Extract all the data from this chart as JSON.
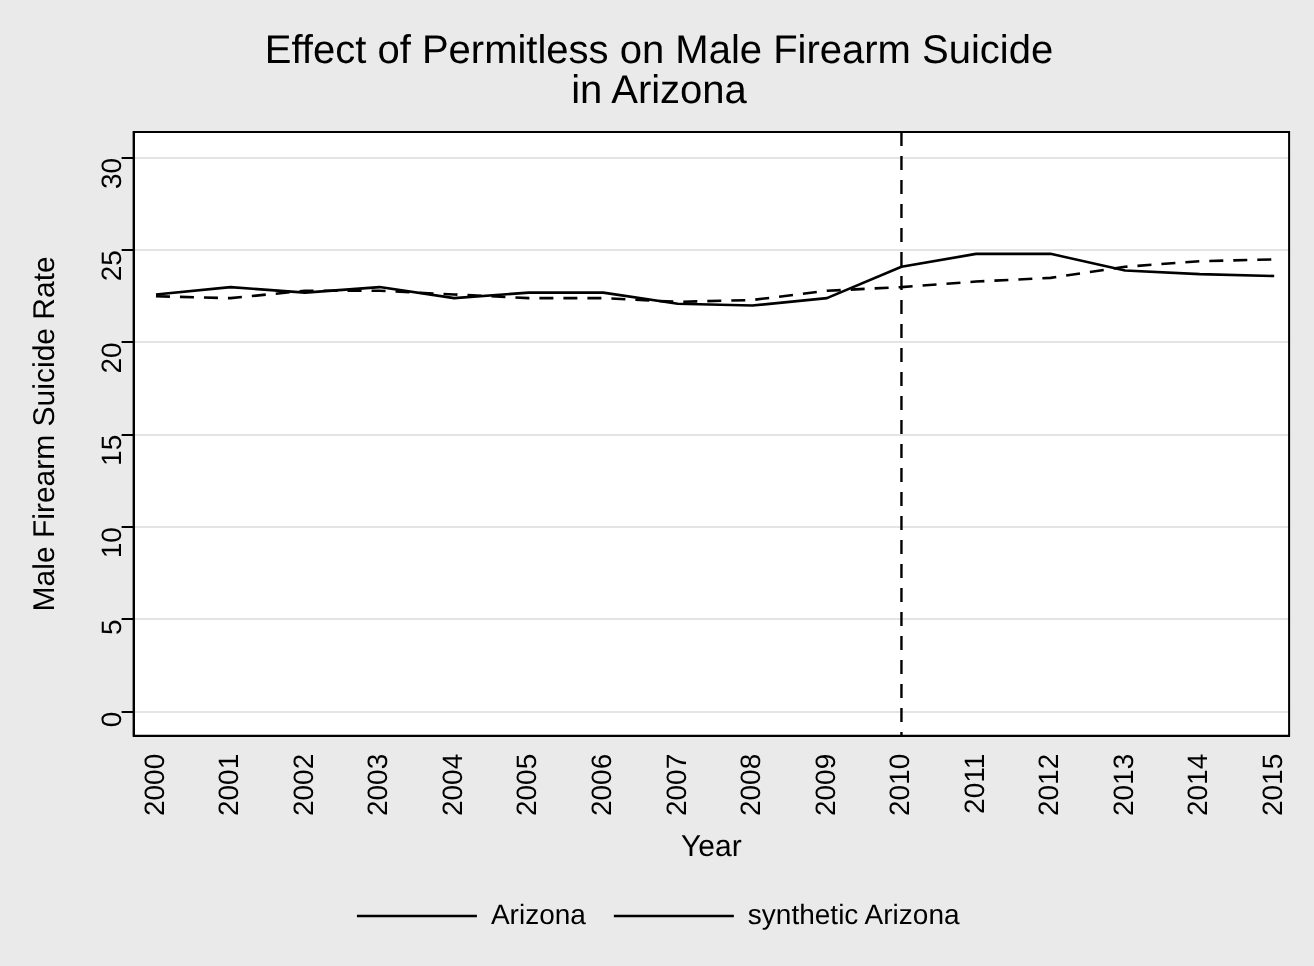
{
  "chart_data": {
    "type": "line",
    "title": "Effect of Permitless on Male Firearm Suicide",
    "subtitle": "in Arizona",
    "xlabel": "Year",
    "ylabel": "Male Firearm Suicide Rate",
    "x": [
      2000,
      2001,
      2002,
      2003,
      2004,
      2005,
      2006,
      2007,
      2008,
      2009,
      2010,
      2011,
      2012,
      2013,
      2014,
      2015
    ],
    "xlim": [
      1999.7,
      2015.2
    ],
    "xticks": [
      2000,
      2001,
      2002,
      2003,
      2004,
      2005,
      2006,
      2007,
      2008,
      2009,
      2010,
      2011,
      2012,
      2013,
      2014,
      2015
    ],
    "ylim": [
      -1.3,
      31.4
    ],
    "yticks": [
      0,
      5,
      10,
      15,
      20,
      25,
      30
    ],
    "series": [
      {
        "name": "Arizona",
        "color": "#000000",
        "line_style": "solid",
        "values": [
          22.6,
          23.0,
          22.7,
          23.0,
          22.4,
          22.7,
          22.7,
          22.1,
          22.0,
          22.4,
          24.1,
          24.8,
          24.8,
          23.9,
          23.7,
          23.6
        ]
      },
      {
        "name": "synthetic Arizona",
        "color": "#000000",
        "line_style": "dashed",
        "values": [
          22.5,
          22.4,
          22.8,
          22.8,
          22.6,
          22.4,
          22.4,
          22.2,
          22.3,
          22.8,
          23.0,
          23.3,
          23.5,
          24.1,
          24.4,
          24.5
        ]
      }
    ],
    "ref_lines": [
      {
        "axis": "x",
        "value": 2010,
        "color": "#000000",
        "line_style": "dashed"
      }
    ],
    "grid": "y",
    "legend": "bottom",
    "marker": "none"
  }
}
